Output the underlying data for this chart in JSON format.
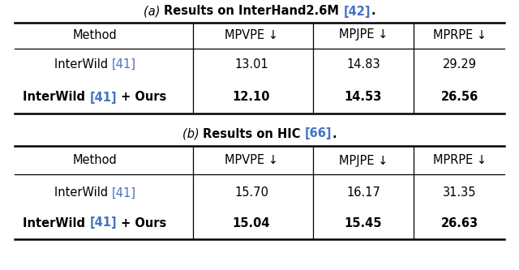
{
  "title_a_parts": [
    [
      "(a) ",
      false,
      "#000000",
      true
    ],
    [
      "Results on InterHand2.6M ",
      true,
      "#000000",
      false
    ],
    [
      "[42]",
      true,
      "#4472C4",
      false
    ],
    [
      ".",
      true,
      "#000000",
      false
    ]
  ],
  "title_b_parts": [
    [
      "(b) ",
      false,
      "#000000",
      true
    ],
    [
      "Results on HIC ",
      true,
      "#000000",
      false
    ],
    [
      "[66]",
      true,
      "#4472C4",
      false
    ],
    [
      ".",
      true,
      "#000000",
      false
    ]
  ],
  "col_headers": [
    "Method",
    "MPVPE ↓",
    "MPJPE ↓",
    "MPRPE ↓"
  ],
  "table_a_rows": [
    {
      "method_parts": [
        [
          "InterWild ",
          false,
          "#000000",
          false
        ],
        [
          "[41]",
          false,
          "#4472C4",
          false
        ]
      ],
      "values": [
        "13.01",
        "14.83",
        "29.29"
      ],
      "bold": false
    },
    {
      "method_parts": [
        [
          "InterWild ",
          true,
          "#000000",
          false
        ],
        [
          "[41]",
          true,
          "#4472C4",
          false
        ],
        [
          " + Ours",
          true,
          "#000000",
          false
        ]
      ],
      "values": [
        "12.10",
        "14.53",
        "26.56"
      ],
      "bold": true
    }
  ],
  "table_b_rows": [
    {
      "method_parts": [
        [
          "InterWild ",
          false,
          "#000000",
          false
        ],
        [
          "[41]",
          false,
          "#4472C4",
          false
        ]
      ],
      "values": [
        "15.70",
        "16.17",
        "31.35"
      ],
      "bold": false
    },
    {
      "method_parts": [
        [
          "InterWild ",
          true,
          "#000000",
          false
        ],
        [
          "[41]",
          true,
          "#4472C4",
          false
        ],
        [
          " + Ours",
          true,
          "#000000",
          false
        ]
      ],
      "values": [
        "15.04",
        "15.45",
        "26.63"
      ],
      "bold": true
    }
  ],
  "bg_color": "#ffffff",
  "line_color": "#000000",
  "font_size": 10.5,
  "title_font_size": 10.5
}
